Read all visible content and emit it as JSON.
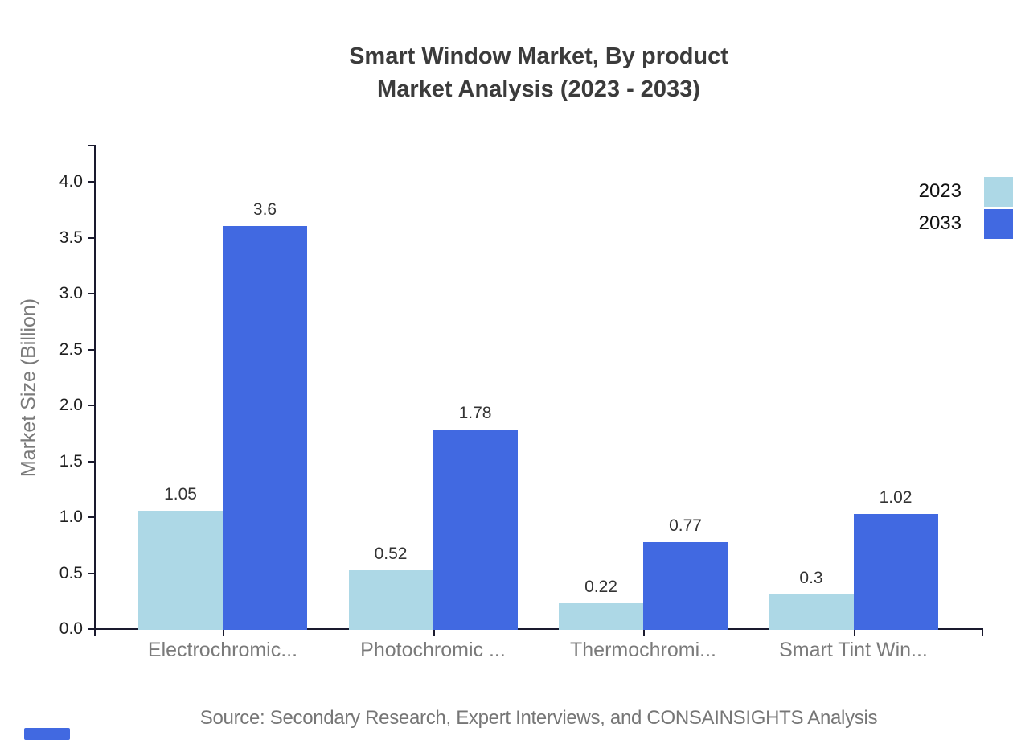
{
  "title": {
    "line1": "Smart Window Market, By product",
    "line2": "Market Analysis (2023 - 2033)"
  },
  "chart_data": {
    "type": "bar",
    "categories": [
      "Electrochromic...",
      "Photochromic ...",
      "Thermochromi...",
      "Smart Tint Win..."
    ],
    "series": [
      {
        "name": "2023",
        "color": "#add8e6",
        "values": [
          1.05,
          0.52,
          0.22,
          0.3
        ]
      },
      {
        "name": "2033",
        "color": "#4169e1",
        "values": [
          3.6,
          1.78,
          0.77,
          1.02
        ]
      }
    ],
    "value_labels": {
      "2023": [
        "1.05",
        "0.52",
        "0.22",
        "0.3"
      ],
      "2033": [
        "3.6",
        "1.78",
        "0.77",
        "1.02"
      ]
    },
    "title": "Smart Window Market, By product Market Analysis (2023 - 2033)",
    "xlabel": "",
    "ylabel": "Market Size (Billion)",
    "ylim": [
      0,
      4.35
    ],
    "yticks": [
      "0.0",
      "0.5",
      "1.0",
      "1.5",
      "2.0",
      "2.5",
      "3.0",
      "3.5",
      "4.0"
    ],
    "grid": false,
    "legend_position": "top-right"
  },
  "source": "Source: Secondary Research, Expert Interviews, and CONSAINSIGHTS Analysis",
  "colors": {
    "series_2023": "#add8e6",
    "series_2033": "#4169e1",
    "axis_line": "#1a1a2e",
    "title_text": "#3b3b3b",
    "muted_text": "#7a7a7a",
    "tick_text": "#1f1f1f",
    "watermark": "#4169e1"
  }
}
